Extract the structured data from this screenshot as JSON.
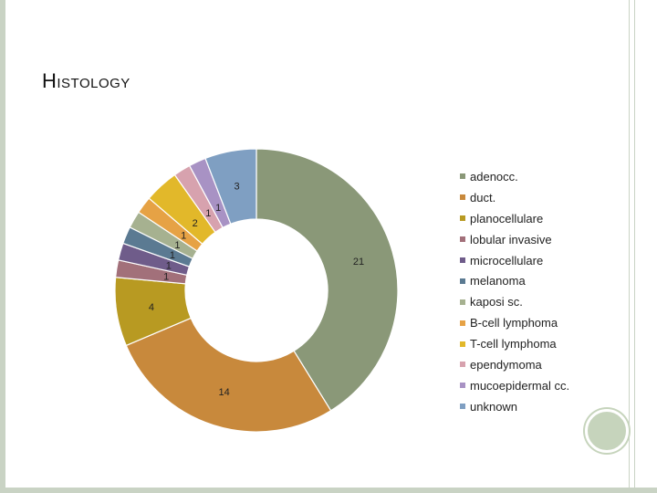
{
  "title": "Histology",
  "chart_data": {
    "type": "pie",
    "style": "donut",
    "title": "Histology",
    "categories": [
      "adenocc.",
      "duct.",
      "planocellulare",
      "lobular invasive",
      "microcellulare",
      "melanoma",
      "kaposi sc.",
      "B-cell lymphoma",
      "T-cell lymphoma",
      "ependymoma",
      "mucoepidermal cc.",
      "unknown"
    ],
    "values": [
      21,
      14,
      4,
      1,
      1,
      1,
      1,
      1,
      2,
      1,
      1,
      3
    ],
    "data_labels": [
      "21",
      "14",
      "4",
      "1",
      "1",
      "1",
      "1",
      "1",
      "2",
      "1",
      "1",
      "3"
    ],
    "colors": [
      "#8a9878",
      "#c8893c",
      "#b89a22",
      "#a2707a",
      "#6f5c8a",
      "#5b7a92",
      "#a6b190",
      "#e6a245",
      "#e2b82a",
      "#d7a2ae",
      "#a892c4",
      "#7f9fc2"
    ],
    "legend_position": "right"
  }
}
